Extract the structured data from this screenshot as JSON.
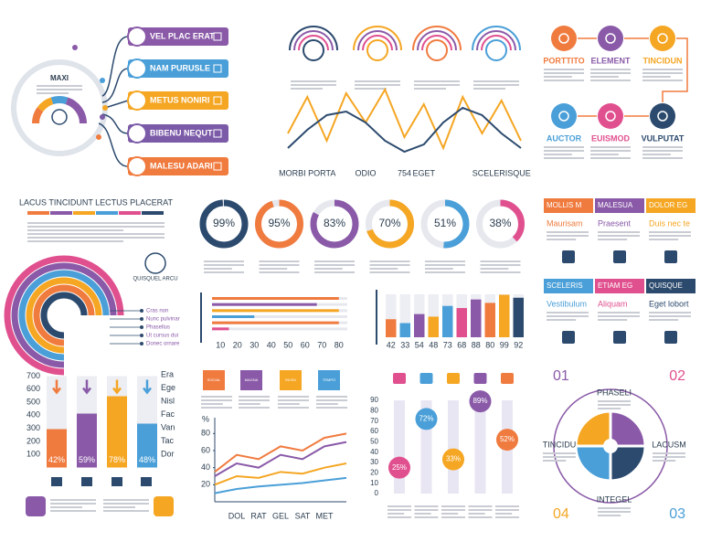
{
  "mindmap": {
    "center": "MAXI",
    "items": [
      {
        "label": "VEL PLAC ERAT",
        "color": "#8a5aa8"
      },
      {
        "label": "NAM PURUSLE",
        "color": "#4a9fd8"
      },
      {
        "label": "METUS NONIRI",
        "color": "#f5a623"
      },
      {
        "label": "BIBENU NEQUT",
        "color": "#7b5aa8"
      },
      {
        "label": "MALESU ADARI",
        "color": "#f07b3f"
      }
    ]
  },
  "process": {
    "steps": [
      {
        "label": "PORTTITO",
        "color": "#f07b3f"
      },
      {
        "label": "ELEMENT",
        "color": "#8a5aa8"
      },
      {
        "label": "TINCIDUN",
        "color": "#f5a623"
      },
      {
        "label": "AUCTOR",
        "color": "#4a9fd8"
      },
      {
        "label": "EUISMOD",
        "color": "#e0508f"
      },
      {
        "label": "VULPUTAT",
        "color": "#2c4a6e"
      }
    ]
  },
  "lacus": {
    "title": "LACUS TINCIDUNT LECTUS PLACERAT",
    "badge": "QUISQUEL ARCU",
    "legend": [
      "Cras non",
      "Nunc pulvinar",
      "Phasellus",
      "Ut cursus dui",
      "Donec ornare"
    ]
  },
  "cards": [
    {
      "head": "MOLLIS M",
      "sub": "Maurisam",
      "color": "#f07b3f"
    },
    {
      "head": "MALESUA",
      "sub": "Praesent",
      "color": "#8a5aa8"
    },
    {
      "head": "DOLOR EG",
      "sub": "Duis nec te",
      "color": "#f5a623"
    },
    {
      "head": "SCELERIS",
      "sub": "Vestibulum",
      "color": "#4a9fd8"
    },
    {
      "head": "ETIAM EG",
      "sub": "Aliquam",
      "color": "#e0508f"
    },
    {
      "head": "QUISQUE",
      "sub": "Eget lobort",
      "color": "#2c4a6e"
    }
  ],
  "tiles": [
    {
      "label": "SOCIAL",
      "color": "#f07b3f"
    },
    {
      "label": "MAGNA",
      "color": "#8a5aa8"
    },
    {
      "label": "INVIDI",
      "color": "#f5a623"
    },
    {
      "label": "TEMPO",
      "color": "#4a9fd8"
    }
  ],
  "side_labels": [
    "Era",
    "Ege",
    "Nisl",
    "Fac",
    "Van",
    "Tac",
    "Dor"
  ],
  "cycle": {
    "numbers": [
      "01",
      "02",
      "03",
      "04"
    ],
    "labels": [
      "PHASELI",
      "LACUSM",
      "INTEGEL",
      "TINCIDU"
    ]
  },
  "chart_data": [
    {
      "type": "line",
      "categories": [
        null,
        "MORBI PORTA",
        null,
        null,
        "ODIO",
        null,
        "754",
        "EGET",
        null,
        null,
        null,
        "SCELERISQUE",
        null
      ],
      "ylim": [
        0,
        100
      ],
      "series": [
        {
          "color": "#f5a623",
          "values": [
            40,
            90,
            30,
            95,
            55,
            100,
            35,
            80,
            20,
            90,
            40,
            85,
            30
          ]
        },
        {
          "color": "#2c4a6e",
          "values": [
            20,
            45,
            65,
            70,
            55,
            30,
            15,
            25,
            55,
            75,
            65,
            40,
            20
          ]
        }
      ]
    },
    {
      "type": "donut",
      "values": [
        99,
        95,
        83,
        70,
        51,
        38
      ],
      "value_labels": [
        "99%",
        "95%",
        "83%",
        "70%",
        "51%",
        "38%"
      ],
      "colors": [
        "#2c4a6e",
        "#f07b3f",
        "#8a5aa8",
        "#f5a623",
        "#4a9fd8",
        "#e0508f"
      ]
    },
    {
      "type": "hbar",
      "values": [
        80,
        67,
        80,
        30,
        80,
        15
      ],
      "colors": [
        "#f07b3f",
        "#8a5aa8",
        "#f5a623",
        "#4a9fd8",
        "#f07b3f",
        "#e0508f"
      ],
      "xlim": [
        5,
        85
      ],
      "xticks": [
        10,
        20,
        30,
        40,
        50,
        60,
        70,
        80
      ]
    },
    {
      "type": "bar",
      "values": [
        42,
        33,
        54,
        48,
        73,
        68,
        88,
        80,
        99,
        92
      ],
      "colors": [
        "#f07b3f",
        "#4a9fd8",
        "#8a5aa8",
        "#f5a623",
        "#4a9fd8",
        "#e0508f",
        "#8a5aa8",
        "#f07b3f",
        "#f5a623",
        "#2c4a6e"
      ],
      "ylim": [
        0,
        100
      ]
    },
    {
      "type": "percent_bar",
      "values": [
        42,
        59,
        78,
        48
      ],
      "value_labels": [
        "42%",
        "59%",
        "78%",
        "48%"
      ],
      "colors": [
        "#f07b3f",
        "#8a5aa8",
        "#f5a623",
        "#4a9fd8"
      ],
      "ylim": [
        0,
        700
      ],
      "yticks": [
        100,
        200,
        300,
        400,
        500,
        600,
        700
      ]
    },
    {
      "type": "line",
      "y_label": "%",
      "categories": [
        null,
        "DOL",
        "RAT",
        "GEL",
        "SAT",
        "MET",
        null
      ],
      "ylim": [
        0,
        90
      ],
      "yticks": [
        20,
        40,
        60,
        80
      ],
      "series": [
        {
          "color": "#f07b3f",
          "values": [
            35,
            55,
            50,
            65,
            60,
            75,
            80
          ]
        },
        {
          "color": "#8a5aa8",
          "values": [
            30,
            45,
            40,
            55,
            50,
            65,
            70
          ]
        },
        {
          "color": "#f5a623",
          "values": [
            20,
            30,
            28,
            35,
            33,
            40,
            45
          ]
        },
        {
          "color": "#4a9fd8",
          "values": [
            10,
            15,
            18,
            20,
            22,
            25,
            28
          ]
        }
      ]
    },
    {
      "type": "lollipop",
      "values": [
        25,
        72,
        33,
        89,
        52
      ],
      "value_labels": [
        "25%",
        "72%",
        "33%",
        "89%",
        "52%"
      ],
      "colors": [
        "#e0508f",
        "#4a9fd8",
        "#f5a623",
        "#8a5aa8",
        "#f07b3f"
      ],
      "ylim": [
        0,
        90
      ],
      "yticks": [
        0,
        10,
        20,
        30,
        40,
        50,
        60,
        70,
        80,
        90
      ]
    }
  ]
}
